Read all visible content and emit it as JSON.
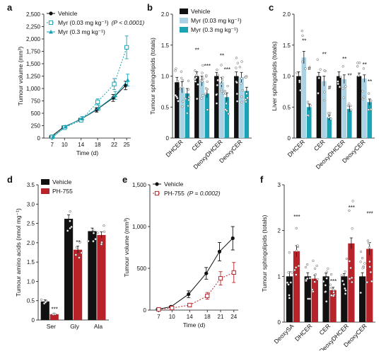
{
  "colors": {
    "black": "#111111",
    "light_blue": "#a9d2e4",
    "teal": "#1aa3b5",
    "red": "#b8232a",
    "grey_label": "#8a8a8a"
  },
  "chart_data": [
    {
      "panel": "a",
      "type": "line",
      "ylabel": "Tumour volume (mm³)",
      "xlabel": "Time (d)",
      "ylim": [
        0,
        2500
      ],
      "yticks": [
        "0",
        "250",
        "500",
        "750",
        "1,000",
        "1,250",
        "1,500",
        "1,750",
        "2,000",
        "2,250",
        "2,500"
      ],
      "x": [
        7,
        10,
        14,
        18,
        22,
        25
      ],
      "series": [
        {
          "name": "Vehicle",
          "marker": "circle",
          "color": "#111111",
          "values": [
            30,
            220,
            370,
            570,
            810,
            1060
          ],
          "errors": [
            15,
            25,
            30,
            45,
            70,
            85
          ]
        },
        {
          "name": "Myr (0.03 mg kg⁻¹)",
          "annotation": "(P < 0.0001)",
          "marker": "square-open",
          "color": "#1aa3b5",
          "values": [
            25,
            210,
            360,
            730,
            1090,
            1830
          ],
          "errors": [
            15,
            25,
            35,
            60,
            110,
            230
          ]
        },
        {
          "name": "Myr (0.3 mg kg⁻¹)",
          "marker": "triangle",
          "color": "#1aa3b5",
          "values": [
            28,
            230,
            400,
            610,
            860,
            1170
          ],
          "errors": [
            15,
            25,
            35,
            55,
            80,
            120
          ]
        }
      ]
    },
    {
      "panel": "b",
      "type": "bar",
      "ylabel": "Tumour sphingolipids (totals)",
      "ylim": [
        0,
        2.0
      ],
      "yticks": [
        "0",
        "0.5",
        "1.0",
        "1.5",
        "2.0"
      ],
      "categories": [
        "DHCER",
        "CER",
        "DeoxyDHCER",
        "DeoxyCER"
      ],
      "series": [
        {
          "name": "Vehicle",
          "color": "#111111",
          "values": [
            0.9,
            1.0,
            1.0,
            1.0
          ],
          "errors": [
            0.08,
            0.07,
            0.06,
            0.07
          ]
        },
        {
          "name": "Myr (0.03 mg kg⁻¹)",
          "color": "#a9d2e4",
          "values": [
            0.82,
            0.92,
            0.9,
            0.98
          ],
          "errors": [
            0.09,
            0.08,
            0.08,
            0.08
          ]
        },
        {
          "name": "Myr (0.3 mg kg⁻¹)",
          "color": "#1aa3b5",
          "values": [
            0.72,
            0.72,
            0.66,
            0.76
          ],
          "errors": [
            0.08,
            0.07,
            0.07,
            0.06
          ]
        }
      ],
      "annotations": [
        "**",
        "***",
        "**",
        "***"
      ]
    },
    {
      "panel": "c",
      "type": "bar",
      "ylabel": "Liver sphingolipids (totals)",
      "ylim": [
        0,
        2.0
      ],
      "yticks": [
        "0",
        "0.5",
        "1.0",
        "1.5",
        "2.0"
      ],
      "categories": [
        "DHCER",
        "CER",
        "DeoxyDHCER",
        "DeoxyCER"
      ],
      "series": [
        {
          "name": "Vehicle",
          "color": "#111111",
          "values": [
            1.0,
            1.0,
            1.0,
            1.0
          ],
          "errors": [
            0.07,
            0.06,
            0.07,
            0.05
          ]
        },
        {
          "name": "Myr (0.03 mg kg⁻¹)",
          "color": "#a9d2e4",
          "values": [
            1.3,
            0.92,
            0.95,
            0.96
          ],
          "errors": [
            0.1,
            0.08,
            0.07,
            0.06
          ]
        },
        {
          "name": "Myr (0.3 mg kg⁻¹)",
          "color": "#1aa3b5",
          "values": [
            0.5,
            0.33,
            0.47,
            0.58
          ],
          "errors": [
            0.05,
            0.04,
            0.05,
            0.05
          ]
        }
      ],
      "annotations": [
        "**",
        "#",
        "**",
        "#",
        "**",
        "**",
        "**",
        "**"
      ]
    },
    {
      "panel": "d",
      "type": "bar",
      "ylabel": "Tumour amino acids (nmol mg⁻¹)",
      "ylim": [
        0,
        3.5
      ],
      "yticks": [
        "0",
        "0.5",
        "1.0",
        "1.5",
        "2.0",
        "2.5",
        "3.0",
        "3.5"
      ],
      "categories": [
        "Ser",
        "Gly",
        "Ala"
      ],
      "series": [
        {
          "name": "Vehicle",
          "color": "#111111",
          "values": [
            0.48,
            2.62,
            2.3
          ],
          "errors": [
            0.04,
            0.1,
            0.08
          ]
        },
        {
          "name": "PH-755",
          "color": "#b8232a",
          "values": [
            0.15,
            1.82,
            2.2
          ],
          "errors": [
            0.02,
            0.09,
            0.08
          ]
        }
      ],
      "annotations": [
        "***",
        "**"
      ]
    },
    {
      "panel": "e",
      "type": "line",
      "ylabel": "Tumour volume (mm³)",
      "xlabel": "Time (d)",
      "ylim": [
        0,
        1500
      ],
      "yticks": [
        "0",
        "500",
        "1,000",
        "1,500"
      ],
      "x": [
        7,
        10,
        14,
        18,
        21,
        24
      ],
      "series": [
        {
          "name": "Vehicle",
          "marker": "circle",
          "color": "#111111",
          "values": [
            10,
            40,
            190,
            440,
            700,
            860
          ],
          "errors": [
            5,
            10,
            40,
            70,
            110,
            140
          ]
        },
        {
          "name": "PH-755",
          "annotation": "(P = 0.0002)",
          "marker": "square-open",
          "color": "#b8232a",
          "values": [
            8,
            25,
            60,
            170,
            380,
            450
          ],
          "errors": [
            5,
            8,
            20,
            40,
            80,
            120
          ]
        }
      ]
    },
    {
      "panel": "f",
      "type": "bar",
      "ylabel": "Tumour sphingolipids (totals)",
      "ylim": [
        0,
        3
      ],
      "yticks": [
        "0",
        "1",
        "2",
        "3"
      ],
      "categories": [
        "DeoxySA",
        "DHCER",
        "CER",
        "DeoxyDHCER",
        "DeoxyCER"
      ],
      "series": [
        {
          "name": "Vehicle",
          "color": "#111111",
          "values": [
            1.0,
            1.0,
            1.0,
            1.0,
            1.0
          ],
          "errors": [
            0.1,
            0.08,
            0.07,
            0.06,
            0.08
          ]
        },
        {
          "name": "PH-755",
          "color": "#b8232a",
          "values": [
            1.55,
            0.95,
            0.7,
            1.72,
            1.6
          ],
          "errors": [
            0.12,
            0.08,
            0.06,
            0.12,
            0.14
          ]
        }
      ],
      "annotations": [
        "***",
        "***",
        "***",
        "***"
      ]
    }
  ]
}
